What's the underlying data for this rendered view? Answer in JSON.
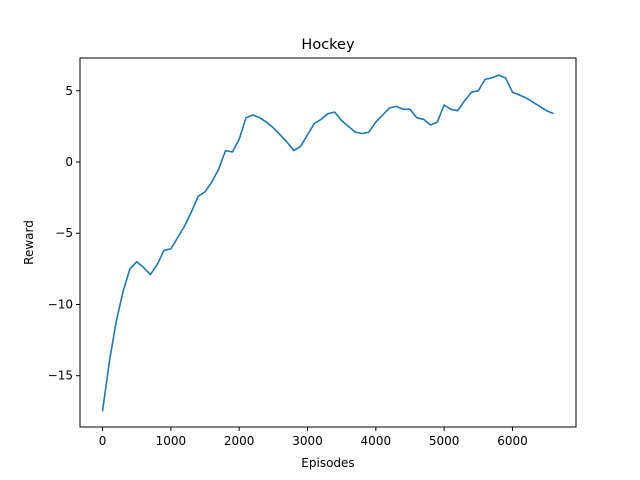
{
  "chart_data": {
    "type": "line",
    "title": "Hockey",
    "xlabel": "Episodes",
    "ylabel": "Reward",
    "xlim": [
      -330,
      6930
    ],
    "ylim": [
      -18.6,
      7.3
    ],
    "xticks": [
      0,
      1000,
      2000,
      3000,
      4000,
      5000,
      6000
    ],
    "xtick_labels": [
      "0",
      "1000",
      "2000",
      "3000",
      "4000",
      "5000",
      "6000"
    ],
    "yticks": [
      -15,
      -10,
      -5,
      0,
      5
    ],
    "ytick_labels": [
      "−15",
      "−10",
      "−5",
      "0",
      "5"
    ],
    "grid": false,
    "line_color": "#1f77b4",
    "series": [
      {
        "x": [
          0,
          100,
          200,
          300,
          400,
          500,
          600,
          700,
          800,
          900,
          1000,
          1100,
          1200,
          1300,
          1400,
          1500,
          1600,
          1700,
          1800,
          1900,
          2000,
          2100,
          2200,
          2300,
          2400,
          2500,
          2600,
          2700,
          2800,
          2900,
          3000,
          3100,
          3200,
          3300,
          3400,
          3500,
          3600,
          3700,
          3800,
          3900,
          4000,
          4100,
          4200,
          4300,
          4400,
          4500,
          4600,
          4700,
          4800,
          4900,
          5000,
          5100,
          5200,
          5300,
          5400,
          5500,
          5600,
          5700,
          5800,
          5900,
          6000,
          6100,
          6200,
          6300,
          6400,
          6500,
          6600
        ],
        "values": [
          -17.5,
          -14.0,
          -11.2,
          -9.1,
          -7.5,
          -7.0,
          -7.4,
          -7.9,
          -7.2,
          -6.2,
          -6.1,
          -5.3,
          -4.5,
          -3.5,
          -2.4,
          -2.1,
          -1.4,
          -0.5,
          0.8,
          0.7,
          1.6,
          3.1,
          3.3,
          3.1,
          2.8,
          2.4,
          1.9,
          1.4,
          0.8,
          1.1,
          1.9,
          2.7,
          3.0,
          3.4,
          3.5,
          2.9,
          2.5,
          2.1,
          2.0,
          2.1,
          2.8,
          3.3,
          3.8,
          3.9,
          3.7,
          3.7,
          3.1,
          3.0,
          2.6,
          2.8,
          4.0,
          3.7,
          3.6,
          4.3,
          4.9,
          5.0,
          5.8,
          5.9,
          6.1,
          5.9,
          4.9,
          4.7,
          4.5,
          4.2,
          3.9,
          3.6,
          3.4
        ]
      }
    ]
  }
}
